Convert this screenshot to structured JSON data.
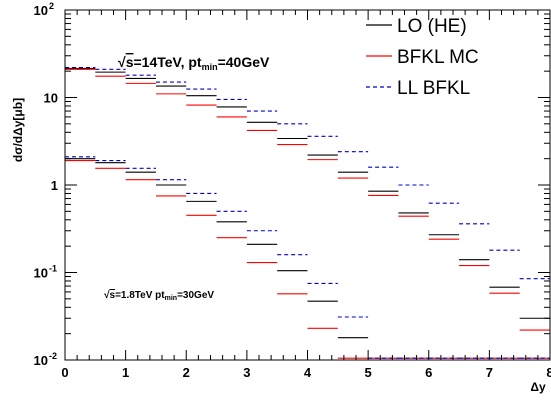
{
  "chart_data": {
    "type": "line",
    "ylabel": "dσ/dΔy[μb]",
    "xlabel": "Δy",
    "xlim": [
      0,
      8
    ],
    "ylim": [
      0.01,
      100
    ],
    "yscale": "log",
    "x_ticks": [
      "0",
      "1",
      "2",
      "3",
      "4",
      "5",
      "6",
      "7",
      "8"
    ],
    "y_ticks": [
      {
        "value": 100,
        "mantissa": "10",
        "exp": "2"
      },
      {
        "value": 10,
        "mantissa": "10",
        "exp": ""
      },
      {
        "value": 1,
        "mantissa": "1",
        "exp": ""
      },
      {
        "value": 0.1,
        "mantissa": "10",
        "exp": "-1"
      },
      {
        "value": 0.01,
        "mantissa": "10",
        "exp": "-2"
      }
    ],
    "bin_edges": [
      0,
      0.5,
      1,
      1.5,
      2,
      2.5,
      3,
      3.5,
      4,
      4.5,
      5,
      5.5,
      6,
      6.5,
      7,
      7.5,
      8
    ],
    "legend_position": "top-right",
    "legend": [
      {
        "label": "LO (HE)",
        "color": "#000000",
        "style": "solid"
      },
      {
        "label": "BFKL MC",
        "color": "#ff0000",
        "style": "solid"
      },
      {
        "label": "LL BFKL",
        "color": "#0000cc",
        "style": "dashed"
      }
    ],
    "annotations": [
      {
        "id": "lhc",
        "sqrt_prefix": "√",
        "s_part": "s",
        "energy": "=14TeV, pt",
        "sub": "min",
        "cut": "=40GeV"
      },
      {
        "id": "tevatron",
        "sqrt_prefix": "√",
        "s_part": "s",
        "energy": "=1.8TeV pt",
        "sub": "min",
        "cut": "=30GeV"
      }
    ],
    "groups": [
      {
        "id": "lhc",
        "series": [
          {
            "key": "LO (HE)",
            "color": "#000000",
            "style": "solid",
            "values": [
              21.5,
              19.5,
              16.5,
              13.5,
              10.5,
              7.8,
              5.2,
              3.4,
              2.2,
              1.4,
              0.85,
              0.48,
              0.27,
              0.14,
              0.068,
              0.03
            ]
          },
          {
            "key": "BFKL MC",
            "color": "#ff0000",
            "style": "solid",
            "values": [
              21.0,
              17.5,
              14.5,
              11.0,
              8.2,
              6.0,
              4.2,
              2.9,
              1.95,
              1.2,
              0.76,
              0.44,
              0.24,
              0.12,
              0.058,
              0.022
            ]
          },
          {
            "key": "LL BFKL",
            "color": "#0000cc",
            "style": "dashed",
            "values": [
              22.0,
              21.0,
              18.0,
              15.0,
              12.5,
              9.5,
              7.0,
              5.0,
              3.6,
              2.4,
              1.6,
              1.0,
              0.62,
              0.36,
              0.18,
              0.085
            ]
          }
        ]
      },
      {
        "id": "tevatron",
        "series": [
          {
            "key": "LO (HE)",
            "color": "#000000",
            "style": "solid",
            "values": [
              2.0,
              1.8,
              1.4,
              1.0,
              0.65,
              0.38,
              0.21,
              0.105,
              0.047,
              0.018,
              0.01,
              0.01,
              0.01,
              0.01,
              0.01,
              0.01
            ]
          },
          {
            "key": "BFKL MC",
            "color": "#ff0000",
            "style": "solid",
            "values": [
              1.9,
              1.55,
              1.15,
              0.75,
              0.45,
              0.25,
              0.13,
              0.057,
              0.023,
              0.0105,
              0.0105,
              0.0105,
              0.0105,
              0.0105,
              0.0105,
              0.0105
            ]
          },
          {
            "key": "LL BFKL",
            "color": "#0000cc",
            "style": "dashed",
            "values": [
              2.1,
              1.9,
              1.55,
              1.15,
              0.8,
              0.5,
              0.3,
              0.16,
              0.075,
              0.031,
              0.0105,
              0.0105,
              0.0105,
              0.0105,
              0.0105,
              0.0105
            ]
          }
        ]
      }
    ]
  }
}
